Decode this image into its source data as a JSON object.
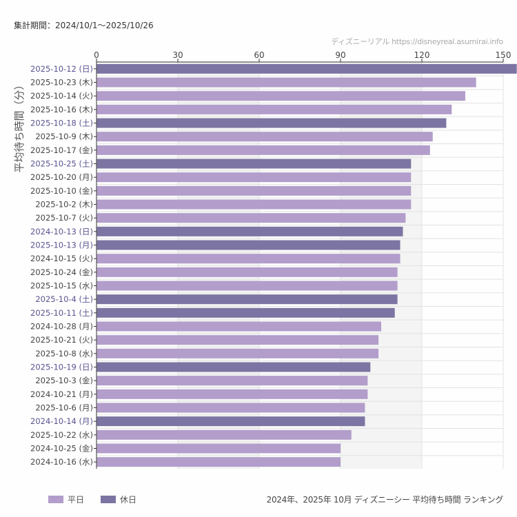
{
  "header": {
    "period": "集計期間：2024/10/1〜2025/10/26",
    "credit": "ディズニーリアル https://disneyreal.asumirai.info"
  },
  "footer": {
    "title": "2024年、2025年 10月 ディズニーシー 平均待ち時間 ランキング"
  },
  "colors": {
    "weekday": "#b29dcb",
    "holiday": "#7c74a2",
    "holiday_label": "#5a5391",
    "weekday_label": "#444444",
    "band": "#f3f4f3",
    "grid": "#e2e2e2"
  },
  "chart_data": {
    "type": "bar",
    "orientation": "horizontal",
    "title": "2024年、2025年 10月 ディズニーシー 平均待ち時間 ランキング",
    "xlabel": "",
    "ylabel": "平均待ち時間（分）",
    "xlim": [
      0,
      150
    ],
    "xticks": [
      0,
      30,
      60,
      90,
      120,
      150
    ],
    "axis_position": "top",
    "legend": [
      {
        "key": "weekday",
        "label": "平日"
      },
      {
        "key": "holiday",
        "label": "休日"
      }
    ],
    "legend_position": "bottom-left",
    "categories": [
      "2025-10-12 (日)",
      "2025-10-23 (木)",
      "2025-10-14 (火)",
      "2025-10-16 (木)",
      "2025-10-18 (土)",
      "2025-10-9 (木)",
      "2025-10-17 (金)",
      "2025-10-25 (土)",
      "2025-10-20 (月)",
      "2025-10-10 (金)",
      "2025-10-2 (木)",
      "2025-10-7 (火)",
      "2024-10-13 (日)",
      "2025-10-13 (月)",
      "2024-10-15 (火)",
      "2025-10-24 (金)",
      "2025-10-15 (水)",
      "2025-10-4 (土)",
      "2025-10-11 (土)",
      "2024-10-28 (月)",
      "2025-10-21 (火)",
      "2025-10-8 (水)",
      "2025-10-19 (日)",
      "2025-10-3 (金)",
      "2024-10-21 (月)",
      "2025-10-6 (月)",
      "2024-10-14 (月)",
      "2025-10-22 (水)",
      "2024-10-25 (金)",
      "2024-10-16 (水)"
    ],
    "values": [
      155,
      140,
      136,
      131,
      129,
      124,
      123,
      116,
      116,
      116,
      116,
      114,
      113,
      112,
      112,
      111,
      111,
      111,
      110,
      105,
      104,
      104,
      101,
      100,
      100,
      99,
      99,
      94,
      90,
      90
    ],
    "day_type": [
      "holiday",
      "weekday",
      "weekday",
      "weekday",
      "holiday",
      "weekday",
      "weekday",
      "holiday",
      "weekday",
      "weekday",
      "weekday",
      "weekday",
      "holiday",
      "holiday",
      "weekday",
      "weekday",
      "weekday",
      "holiday",
      "holiday",
      "weekday",
      "weekday",
      "weekday",
      "holiday",
      "weekday",
      "weekday",
      "weekday",
      "holiday",
      "weekday",
      "weekday",
      "weekday"
    ]
  }
}
